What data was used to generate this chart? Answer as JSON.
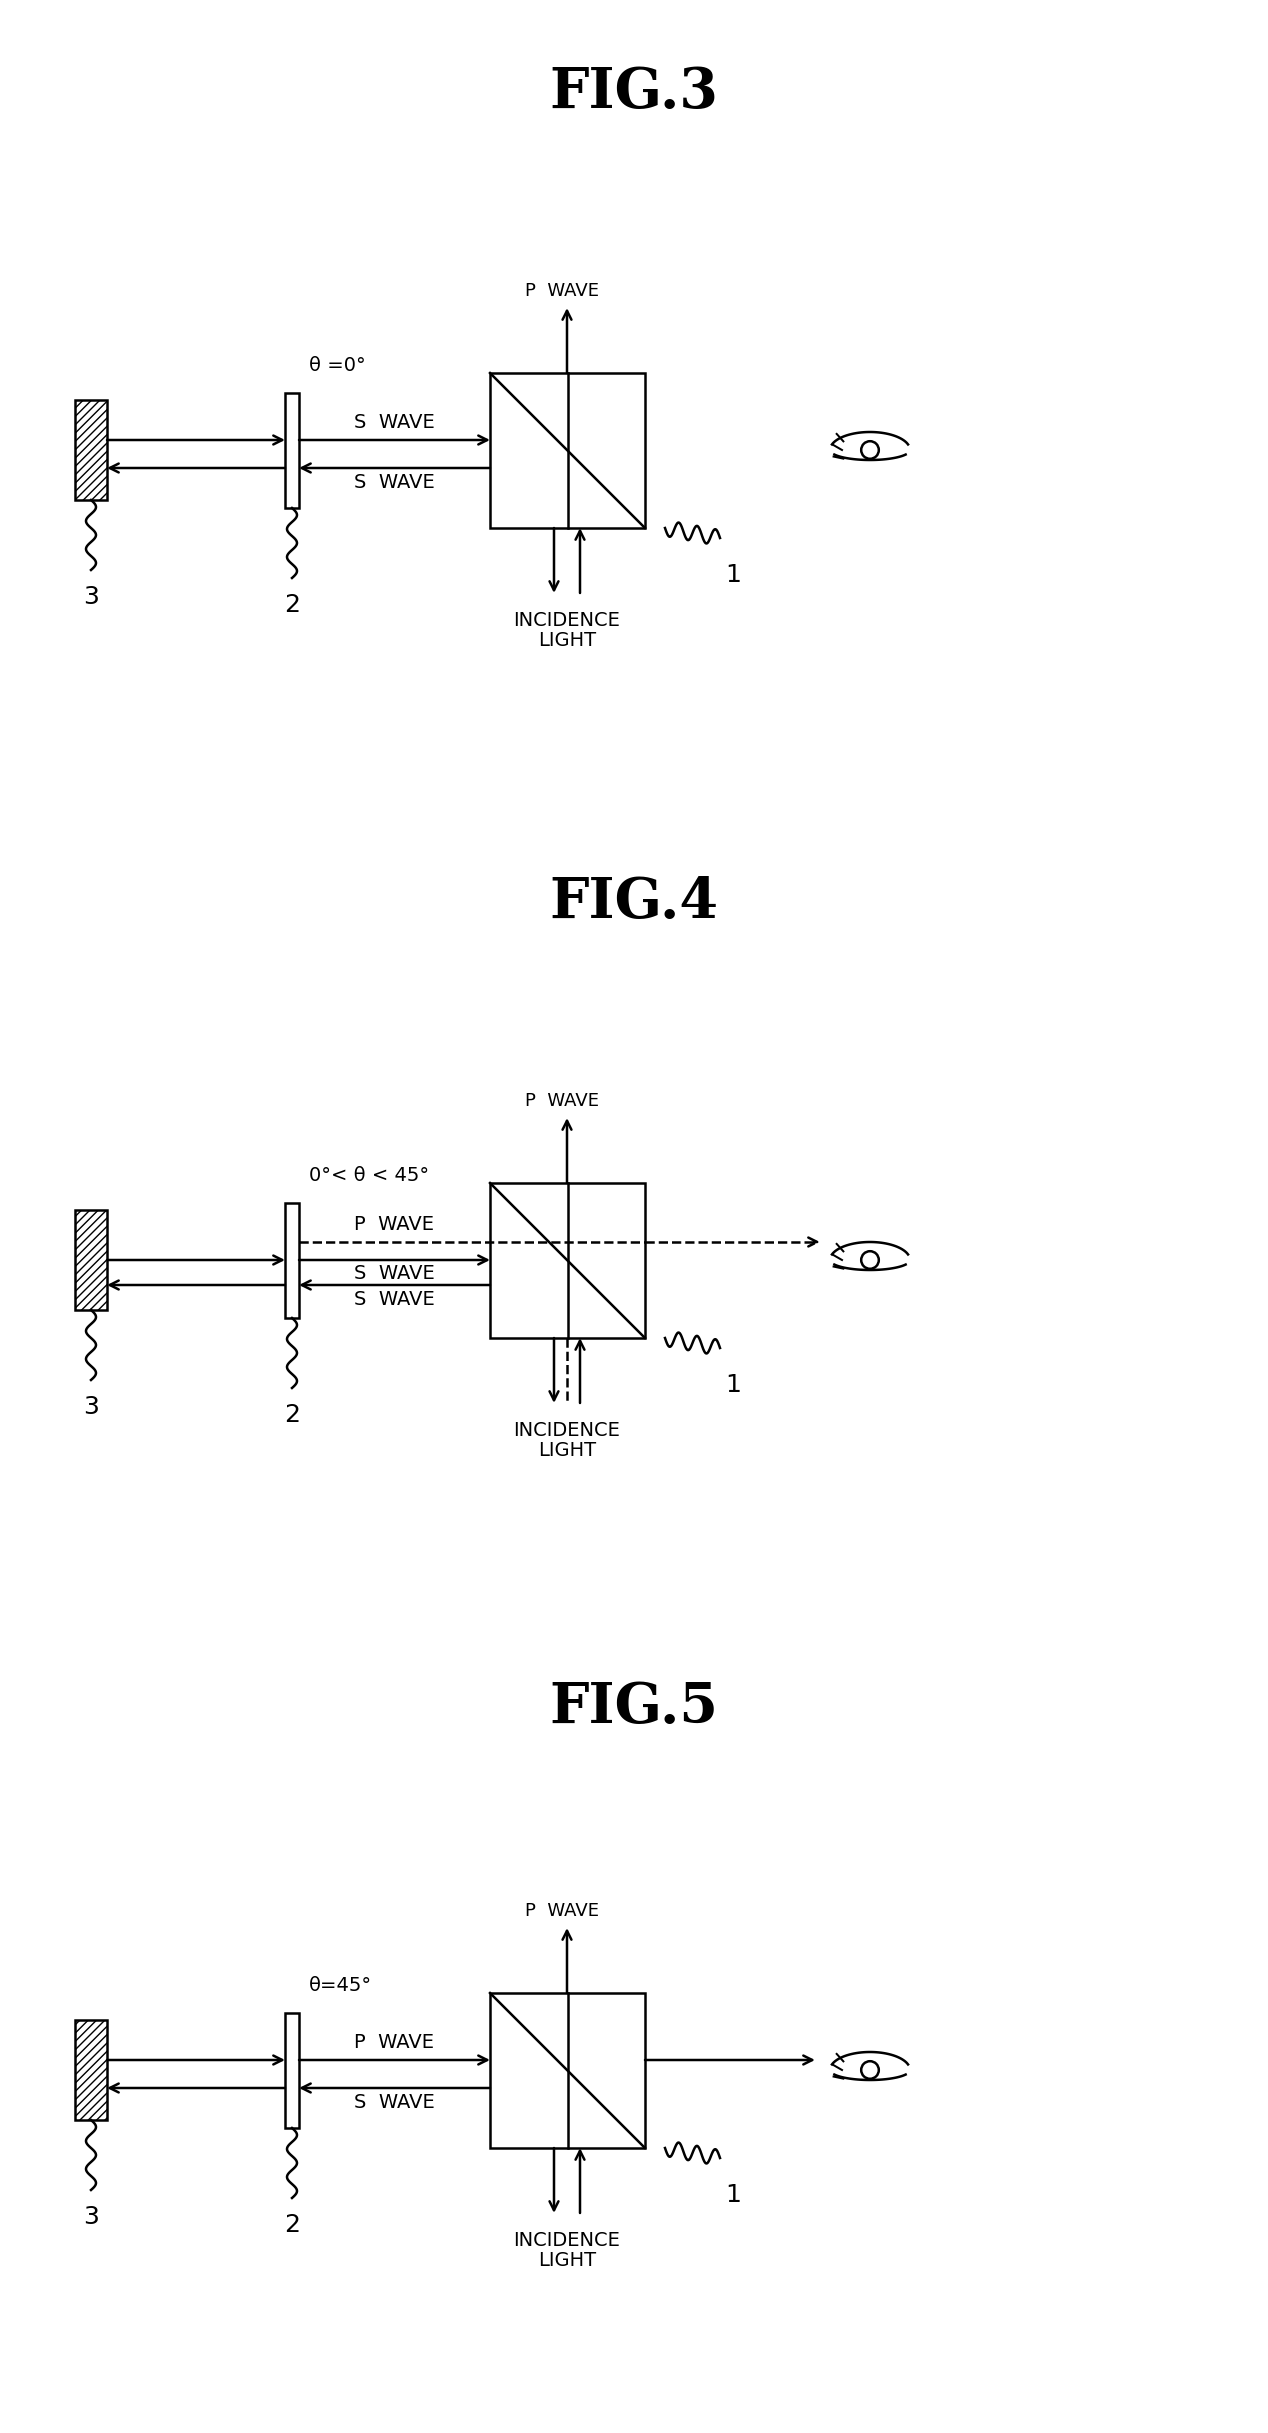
{
  "fig_titles": [
    "FIG.3",
    "FIG.4",
    "FIG.5"
  ],
  "bg_color": "#ffffff",
  "line_color": "#000000",
  "theta_labels": [
    "θ =0°",
    "0°< θ < 45°",
    "θ=45°"
  ],
  "lw": 1.8,
  "fig_title_fontsize": 40,
  "label_fontsize": 14,
  "theta_fontsize": 14,
  "num_fontsize": 18,
  "pwave_label_fontsize": 13
}
